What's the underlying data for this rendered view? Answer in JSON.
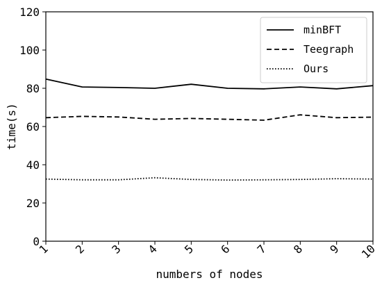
{
  "chart_data": {
    "type": "line",
    "xlabel": "numbers of nodes",
    "ylabel": "time(s)",
    "x": [
      1,
      2,
      3,
      4,
      5,
      6,
      7,
      8,
      9,
      10
    ],
    "xlim": [
      1,
      10
    ],
    "ylim": [
      0,
      120
    ],
    "yticks": [
      0,
      20,
      40,
      60,
      80,
      100,
      120
    ],
    "grid": false,
    "legend_position": "top-right",
    "series": [
      {
        "name": "minBFT",
        "line_style": "solid",
        "color": "#000000",
        "values": [
          84.8,
          80.7,
          80.4,
          80.0,
          82.1,
          80.0,
          79.7,
          80.7,
          79.7,
          81.4
        ]
      },
      {
        "name": "Teegraph",
        "line_style": "dashed",
        "color": "#000000",
        "values": [
          64.6,
          65.3,
          65.0,
          63.8,
          64.2,
          63.8,
          63.3,
          66.1,
          64.6,
          64.9
        ]
      },
      {
        "name": "Ours",
        "line_style": "dotted",
        "color": "#000000",
        "values": [
          32.5,
          32.1,
          32.1,
          33.2,
          32.3,
          32.0,
          32.1,
          32.3,
          32.7,
          32.5
        ]
      }
    ]
  }
}
